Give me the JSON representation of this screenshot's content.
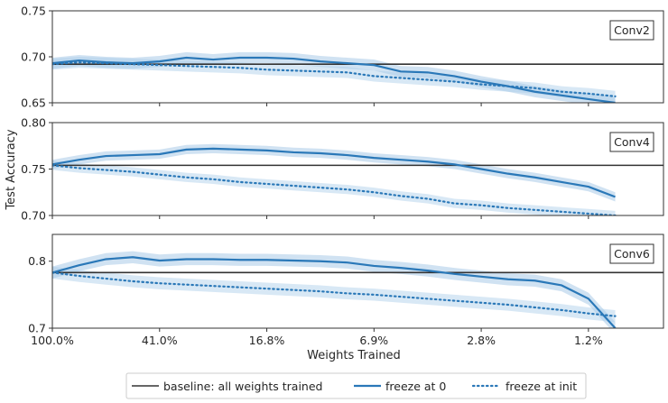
{
  "colors": {
    "baseline": "#333333",
    "freeze_zero": "#2a78b8",
    "freeze_init": "#2a78b8",
    "band": "#a9cbe8"
  },
  "chart_data": {
    "type": "line",
    "ylabel": "Test Accuracy",
    "xlabel": "Weights Trained",
    "x_tick_labels": [
      "100.0%",
      "41.0%",
      "16.8%",
      "6.9%",
      "2.8%",
      "1.2%"
    ],
    "x_tick_positions": [
      0,
      4,
      8,
      12,
      16,
      20
    ],
    "legend": {
      "placement": "bottom-center",
      "entries": [
        {
          "label": "baseline: all weights trained",
          "style": "solid-dark"
        },
        {
          "label": "freeze at 0",
          "style": "solid-blue"
        },
        {
          "label": "freeze at init",
          "style": "dotted-blue"
        }
      ]
    },
    "panels": [
      {
        "title": "Conv2",
        "ylim": [
          0.65,
          0.75
        ],
        "yticks": [
          0.65,
          0.7,
          0.75
        ],
        "ytick_labels": [
          "0.65",
          "0.70",
          "0.75"
        ],
        "baseline": 0.692,
        "series": [
          {
            "name": "freeze at 0",
            "x": [
              0,
              1,
              2,
              3,
              4,
              5,
              6,
              7,
              8,
              9,
              10,
              11,
              12,
              13,
              14,
              15,
              16,
              17,
              18,
              19,
              20,
              21
            ],
            "y": [
              0.693,
              0.696,
              0.694,
              0.693,
              0.695,
              0.699,
              0.697,
              0.699,
              0.699,
              0.698,
              0.695,
              0.693,
              0.691,
              0.684,
              0.683,
              0.679,
              0.673,
              0.668,
              0.662,
              0.658,
              0.654,
              0.65
            ]
          },
          {
            "name": "freeze at init",
            "x": [
              0,
              1,
              2,
              3,
              4,
              5,
              6,
              7,
              8,
              9,
              10,
              11,
              12,
              13,
              14,
              15,
              16,
              17,
              18,
              19,
              20,
              21
            ],
            "y": [
              0.692,
              0.694,
              0.693,
              0.692,
              0.691,
              0.69,
              0.689,
              0.688,
              0.686,
              0.685,
              0.684,
              0.683,
              0.679,
              0.677,
              0.675,
              0.673,
              0.67,
              0.668,
              0.666,
              0.662,
              0.66,
              0.657
            ]
          }
        ]
      },
      {
        "title": "Conv4",
        "ylim": [
          0.7,
          0.8
        ],
        "yticks": [
          0.7,
          0.75,
          0.8
        ],
        "ytick_labels": [
          "0.70",
          "0.75",
          "0.80"
        ],
        "baseline": 0.754,
        "series": [
          {
            "name": "freeze at 0",
            "x": [
              0,
              1,
              2,
              3,
              4,
              5,
              6,
              7,
              8,
              9,
              10,
              11,
              12,
              13,
              14,
              15,
              16,
              17,
              18,
              19,
              20,
              21
            ],
            "y": [
              0.755,
              0.76,
              0.764,
              0.765,
              0.766,
              0.771,
              0.772,
              0.771,
              0.77,
              0.768,
              0.767,
              0.765,
              0.762,
              0.76,
              0.758,
              0.755,
              0.75,
              0.745,
              0.741,
              0.736,
              0.731,
              0.72
            ]
          },
          {
            "name": "freeze at init",
            "x": [
              0,
              1,
              2,
              3,
              4,
              5,
              6,
              7,
              8,
              9,
              10,
              11,
              12,
              13,
              14,
              15,
              16,
              17,
              18,
              19,
              20,
              21
            ],
            "y": [
              0.754,
              0.751,
              0.749,
              0.747,
              0.744,
              0.741,
              0.739,
              0.736,
              0.734,
              0.732,
              0.73,
              0.728,
              0.725,
              0.721,
              0.718,
              0.713,
              0.711,
              0.708,
              0.706,
              0.704,
              0.702,
              0.7
            ]
          }
        ]
      },
      {
        "title": "Conv6",
        "ylim": [
          0.7,
          0.84
        ],
        "yticks": [
          0.7,
          0.8
        ],
        "ytick_labels": [
          "0.7",
          "0.8"
        ],
        "baseline": 0.783,
        "series": [
          {
            "name": "freeze at 0",
            "x": [
              0,
              1,
              2,
              3,
              4,
              5,
              6,
              7,
              8,
              9,
              10,
              11,
              12,
              13,
              14,
              15,
              16,
              17,
              18,
              19,
              20,
              21
            ],
            "y": [
              0.783,
              0.794,
              0.803,
              0.806,
              0.801,
              0.803,
              0.803,
              0.802,
              0.802,
              0.801,
              0.8,
              0.798,
              0.793,
              0.79,
              0.786,
              0.781,
              0.777,
              0.773,
              0.771,
              0.764,
              0.744,
              0.7
            ]
          },
          {
            "name": "freeze at init",
            "x": [
              0,
              1,
              2,
              3,
              4,
              5,
              6,
              7,
              8,
              9,
              10,
              11,
              12,
              13,
              14,
              15,
              16,
              17,
              18,
              19,
              20,
              21
            ],
            "y": [
              0.783,
              0.778,
              0.774,
              0.77,
              0.767,
              0.765,
              0.763,
              0.761,
              0.759,
              0.757,
              0.755,
              0.752,
              0.75,
              0.747,
              0.744,
              0.741,
              0.738,
              0.735,
              0.731,
              0.727,
              0.722,
              0.718
            ]
          }
        ]
      }
    ]
  }
}
